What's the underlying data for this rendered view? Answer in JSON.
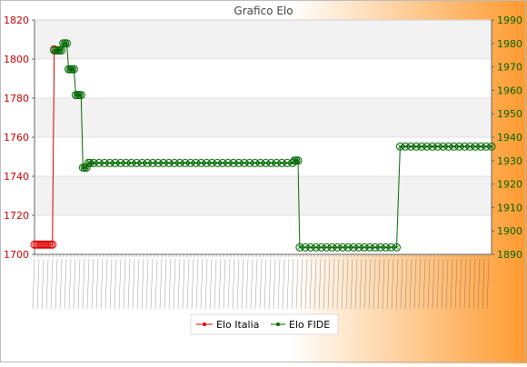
{
  "chart_data": {
    "type": "line",
    "title": "Grafico Elo",
    "x_tick_note": "x-axis tick labels are dates, printed rotated and overlapping; not legible",
    "y_left": {
      "range": [
        1700,
        1820
      ],
      "ticks": [
        1700,
        1720,
        1740,
        1760,
        1780,
        1800,
        1820
      ],
      "color": "#cc0000"
    },
    "y_right": {
      "range": [
        1890,
        1990
      ],
      "ticks": [
        1890,
        1900,
        1910,
        1920,
        1930,
        1940,
        1950,
        1960,
        1970,
        1980,
        1990
      ],
      "color": "#006600"
    },
    "legend_placement": "bottom",
    "grid": true,
    "series": [
      {
        "name": "Elo Italia",
        "axis": "left",
        "color": "#dd0000",
        "points": [
          [
            0,
            1705
          ],
          [
            1,
            1705
          ],
          [
            2,
            1705
          ],
          [
            3,
            1705
          ],
          [
            4,
            1705
          ],
          [
            5,
            1705
          ],
          [
            6,
            1705
          ],
          [
            7,
            1705
          ],
          [
            8,
            1705
          ],
          [
            9,
            1705
          ],
          [
            10,
            1705
          ],
          [
            11,
            1805
          ]
        ]
      },
      {
        "name": "Elo FIDE",
        "axis": "right",
        "color": "#006600",
        "points": [
          [
            11,
            1977
          ],
          [
            12,
            1977
          ],
          [
            13,
            1977
          ],
          [
            14,
            1977
          ],
          [
            15,
            1977
          ],
          [
            16,
            1980
          ],
          [
            17,
            1980
          ],
          [
            18,
            1980
          ],
          [
            19,
            1969
          ],
          [
            20,
            1969
          ],
          [
            21,
            1969
          ],
          [
            22,
            1969
          ],
          [
            23,
            1958
          ],
          [
            24,
            1958
          ],
          [
            25,
            1958
          ],
          [
            26,
            1958
          ],
          [
            27,
            1927
          ],
          [
            28,
            1927
          ],
          [
            29,
            1927
          ],
          [
            30,
            1929
          ],
          [
            31,
            1929
          ],
          [
            33,
            1929
          ],
          [
            36,
            1929
          ],
          [
            39,
            1929
          ],
          [
            42,
            1929
          ],
          [
            45,
            1929
          ],
          [
            48,
            1929
          ],
          [
            51,
            1929
          ],
          [
            54,
            1929
          ],
          [
            57,
            1929
          ],
          [
            60,
            1929
          ],
          [
            63,
            1929
          ],
          [
            66,
            1929
          ],
          [
            69,
            1929
          ],
          [
            72,
            1929
          ],
          [
            75,
            1929
          ],
          [
            78,
            1929
          ],
          [
            81,
            1929
          ],
          [
            84,
            1929
          ],
          [
            87,
            1929
          ],
          [
            90,
            1929
          ],
          [
            93,
            1929
          ],
          [
            96,
            1929
          ],
          [
            99,
            1929
          ],
          [
            102,
            1929
          ],
          [
            105,
            1929
          ],
          [
            108,
            1929
          ],
          [
            111,
            1929
          ],
          [
            114,
            1929
          ],
          [
            117,
            1929
          ],
          [
            120,
            1929
          ],
          [
            123,
            1929
          ],
          [
            126,
            1929
          ],
          [
            129,
            1929
          ],
          [
            132,
            1929
          ],
          [
            135,
            1929
          ],
          [
            138,
            1929
          ],
          [
            141,
            1929
          ],
          [
            144,
            1929
          ],
          [
            145,
            1930
          ],
          [
            146,
            1930
          ],
          [
            147,
            1930
          ],
          [
            148,
            1893
          ],
          [
            151,
            1893
          ],
          [
            154,
            1893
          ],
          [
            157,
            1893
          ],
          [
            160,
            1893
          ],
          [
            163,
            1893
          ],
          [
            166,
            1893
          ],
          [
            169,
            1893
          ],
          [
            172,
            1893
          ],
          [
            175,
            1893
          ],
          [
            178,
            1893
          ],
          [
            181,
            1893
          ],
          [
            184,
            1893
          ],
          [
            187,
            1893
          ],
          [
            190,
            1893
          ],
          [
            193,
            1893
          ],
          [
            196,
            1893
          ],
          [
            199,
            1893
          ],
          [
            202,
            1893
          ],
          [
            204,
            1936
          ],
          [
            207,
            1936
          ],
          [
            210,
            1936
          ],
          [
            213,
            1936
          ],
          [
            216,
            1936
          ],
          [
            219,
            1936
          ],
          [
            222,
            1936
          ],
          [
            225,
            1936
          ],
          [
            228,
            1936
          ],
          [
            231,
            1936
          ],
          [
            234,
            1936
          ],
          [
            237,
            1936
          ],
          [
            240,
            1936
          ],
          [
            243,
            1936
          ],
          [
            246,
            1936
          ],
          [
            249,
            1936
          ],
          [
            252,
            1936
          ],
          [
            255,
            1936
          ]
        ]
      }
    ],
    "x_range": [
      0,
      255
    ]
  }
}
